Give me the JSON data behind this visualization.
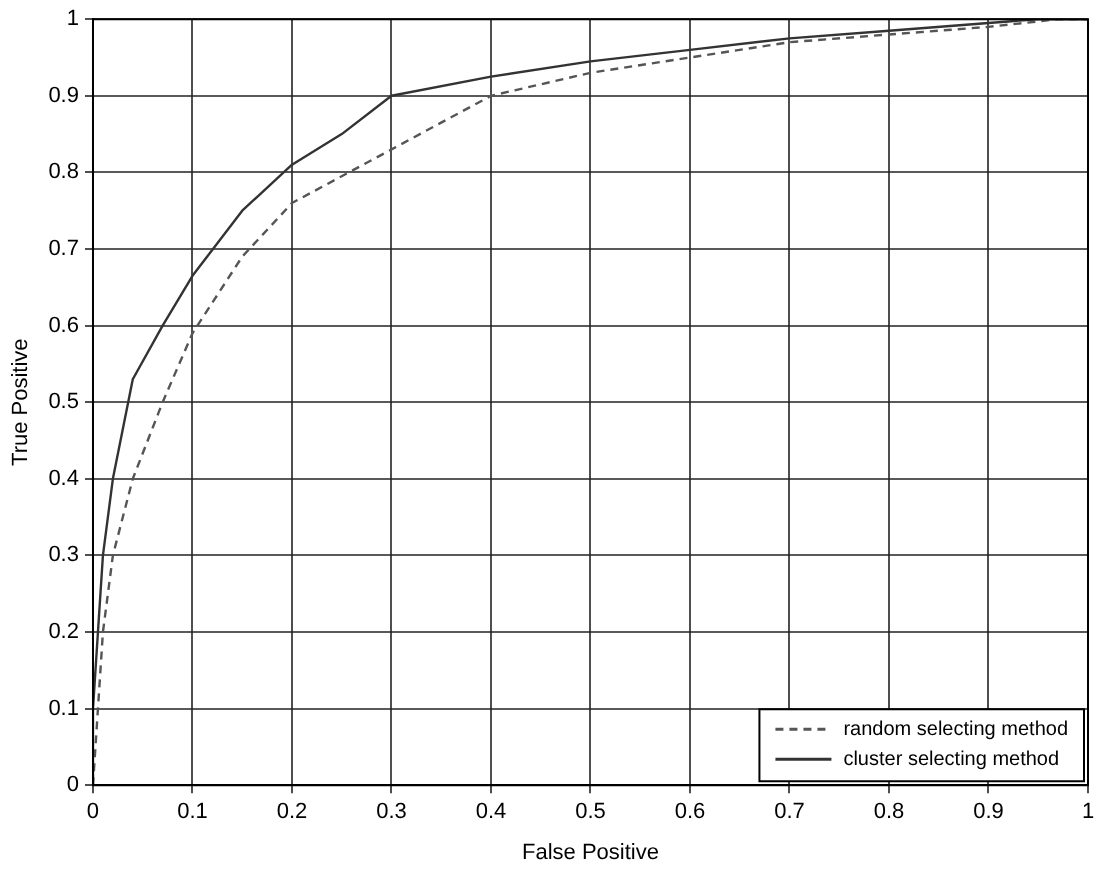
{
  "chart_data": {
    "type": "line",
    "xlabel": "False Positive",
    "ylabel": "True Positive",
    "xlim": [
      0,
      1
    ],
    "ylim": [
      0,
      1
    ],
    "xticks": [
      0,
      0.1,
      0.2,
      0.3,
      0.4,
      0.5,
      0.6,
      0.7,
      0.8,
      0.9,
      1
    ],
    "yticks": [
      0,
      0.1,
      0.2,
      0.3,
      0.4,
      0.5,
      0.6,
      0.7,
      0.8,
      0.9,
      1
    ],
    "grid": true,
    "legend": "bottom right",
    "marker": "none",
    "series": [
      {
        "name": "random selecting method",
        "color": "#555555",
        "line_style": "dashed",
        "x": [
          0,
          0.01,
          0.02,
          0.04,
          0.07,
          0.1,
          0.15,
          0.2,
          0.3,
          0.4,
          0.5,
          0.6,
          0.7,
          0.8,
          0.9,
          0.97,
          1
        ],
        "values": [
          0,
          0.2,
          0.3,
          0.4,
          0.5,
          0.59,
          0.69,
          0.76,
          0.83,
          0.9,
          0.93,
          0.95,
          0.97,
          0.98,
          0.99,
          1,
          1
        ]
      },
      {
        "name": "cluster selecting method",
        "color": "#333333",
        "line_style": "solid",
        "x": [
          0,
          0,
          0.005,
          0.01,
          0.02,
          0.04,
          0.07,
          0.1,
          0.15,
          0.2,
          0.25,
          0.3,
          0.4,
          0.5,
          0.6,
          0.7,
          0.8,
          0.9,
          0.95,
          1
        ],
        "values": [
          0,
          0.1,
          0.2,
          0.3,
          0.4,
          0.53,
          0.6,
          0.665,
          0.75,
          0.81,
          0.85,
          0.9,
          0.925,
          0.945,
          0.96,
          0.975,
          0.985,
          0.995,
          1,
          1
        ]
      }
    ]
  }
}
